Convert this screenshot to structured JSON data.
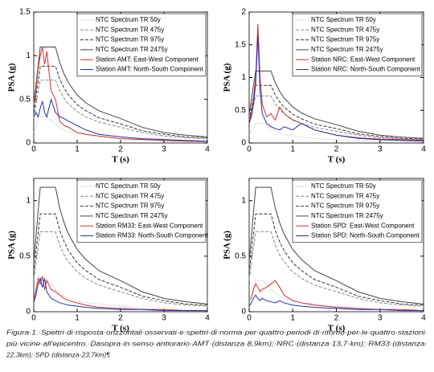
{
  "chart_data": [
    {
      "type": "line",
      "xlabel": "T (s)",
      "ylabel": "PSA (g)",
      "x": [
        0,
        0.05,
        0.1,
        0.15,
        0.2,
        0.25,
        0.3,
        0.4,
        0.5,
        0.6,
        0.7,
        0.8,
        1,
        1.2,
        1.5,
        2,
        2.5,
        3,
        3.5,
        4
      ],
      "xlim": [
        0,
        4
      ],
      "xticks": [
        0,
        1,
        2,
        3,
        4
      ],
      "ylim": [
        0,
        1.5
      ],
      "yticks": [
        0,
        0.5,
        1,
        1.5
      ],
      "series": [
        {
          "name": "NTC Spectrum TR 50y",
          "color": "#aaaaaa",
          "dash": "1,2",
          "values": [
            0.12,
            0.18,
            0.24,
            0.3,
            0.3,
            0.3,
            0.3,
            0.26,
            0.21,
            0.18,
            0.15,
            0.13,
            0.11,
            0.09,
            0.07,
            0.05,
            0.03,
            0.02,
            0.02,
            0.01
          ]
        },
        {
          "name": "NTC Spectrum TR 475y",
          "color": "#888888",
          "dash": "4,2",
          "values": [
            0.29,
            0.43,
            0.58,
            0.72,
            0.72,
            0.72,
            0.72,
            0.72,
            0.72,
            0.6,
            0.51,
            0.45,
            0.36,
            0.3,
            0.24,
            0.18,
            0.12,
            0.08,
            0.06,
            0.05
          ]
        },
        {
          "name": "NTC Spectrum TR 975y",
          "color": "#333333",
          "dash": "4,2",
          "values": [
            0.35,
            0.53,
            0.7,
            0.88,
            0.88,
            0.88,
            0.88,
            0.88,
            0.88,
            0.73,
            0.63,
            0.55,
            0.44,
            0.37,
            0.29,
            0.22,
            0.14,
            0.1,
            0.07,
            0.06
          ]
        },
        {
          "name": "NTC Spectrum TR 2475y",
          "color": "#444444",
          "values": [
            0.44,
            0.66,
            0.88,
            1.1,
            1.1,
            1.1,
            1.1,
            1.1,
            1.1,
            0.92,
            0.79,
            0.69,
            0.55,
            0.46,
            0.37,
            0.28,
            0.18,
            0.12,
            0.09,
            0.07
          ]
        },
        {
          "name": "Station AMT: East-West Component",
          "color": "#d03030",
          "values": [
            0.45,
            0.6,
            0.85,
            1.0,
            1.1,
            0.9,
            1.05,
            0.6,
            0.5,
            0.25,
            0.2,
            0.18,
            0.12,
            0.1,
            0.08,
            0.05,
            0.04,
            0.03,
            0.02,
            0.02
          ]
        },
        {
          "name": "Station AMT: North-South Component",
          "color": "#2030b0",
          "values": [
            0.3,
            0.35,
            0.3,
            0.4,
            0.48,
            0.35,
            0.3,
            0.5,
            0.35,
            0.3,
            0.28,
            0.25,
            0.2,
            0.15,
            0.1,
            0.07,
            0.05,
            0.04,
            0.03,
            0.02
          ]
        }
      ]
    },
    {
      "type": "line",
      "xlabel": "T (s)",
      "ylabel": "PSA (g)",
      "x": [
        0,
        0.05,
        0.1,
        0.15,
        0.2,
        0.25,
        0.3,
        0.4,
        0.5,
        0.6,
        0.7,
        0.8,
        1,
        1.2,
        1.5,
        2,
        2.5,
        3,
        3.5,
        4
      ],
      "xlim": [
        0,
        4
      ],
      "xticks": [
        0,
        1,
        2,
        3,
        4
      ],
      "ylim": [
        0,
        2
      ],
      "yticks": [
        0,
        0.5,
        1,
        1.5,
        2
      ],
      "series": [
        {
          "name": "NTC Spectrum TR 50y",
          "color": "#aaaaaa",
          "dash": "1,2",
          "values": [
            0.12,
            0.18,
            0.24,
            0.3,
            0.3,
            0.3,
            0.3,
            0.26,
            0.21,
            0.18,
            0.15,
            0.13,
            0.11,
            0.09,
            0.07,
            0.05,
            0.03,
            0.02,
            0.02,
            0.01
          ]
        },
        {
          "name": "NTC Spectrum TR 475y",
          "color": "#888888",
          "dash": "4,2",
          "values": [
            0.29,
            0.43,
            0.58,
            0.72,
            0.72,
            0.72,
            0.72,
            0.72,
            0.72,
            0.6,
            0.51,
            0.45,
            0.36,
            0.3,
            0.24,
            0.18,
            0.12,
            0.08,
            0.06,
            0.05
          ]
        },
        {
          "name": "NTC Spectrum TR 975y",
          "color": "#333333",
          "dash": "4,2",
          "values": [
            0.35,
            0.53,
            0.7,
            0.88,
            0.88,
            0.88,
            0.88,
            0.88,
            0.88,
            0.73,
            0.63,
            0.55,
            0.44,
            0.37,
            0.29,
            0.22,
            0.14,
            0.1,
            0.07,
            0.06
          ]
        },
        {
          "name": "NTC Spectrum TR 2475y",
          "color": "#444444",
          "values": [
            0.44,
            0.66,
            0.88,
            1.1,
            1.1,
            1.1,
            1.1,
            1.1,
            1.1,
            0.92,
            0.79,
            0.69,
            0.55,
            0.46,
            0.37,
            0.28,
            0.18,
            0.12,
            0.09,
            0.07
          ]
        },
        {
          "name": "Station NRC: East-West Component",
          "color": "#d03030",
          "values": [
            0.35,
            0.45,
            0.7,
            1.0,
            1.82,
            1.0,
            0.6,
            0.4,
            0.45,
            0.35,
            0.55,
            0.45,
            0.35,
            0.3,
            0.2,
            0.12,
            0.08,
            0.06,
            0.05,
            0.04
          ]
        },
        {
          "name": "Station NRC: North-South Component",
          "color": "#2030b0",
          "values": [
            0.3,
            0.4,
            0.6,
            0.9,
            1.65,
            0.8,
            0.45,
            0.3,
            0.25,
            0.22,
            0.2,
            0.25,
            0.2,
            0.3,
            0.2,
            0.12,
            0.07,
            0.05,
            0.04,
            0.03
          ]
        }
      ]
    },
    {
      "type": "line",
      "xlabel": "T (s)",
      "ylabel": "PSA (g)",
      "x": [
        0,
        0.05,
        0.1,
        0.15,
        0.2,
        0.25,
        0.3,
        0.4,
        0.5,
        0.6,
        0.7,
        0.8,
        1,
        1.2,
        1.5,
        2,
        2.5,
        3,
        3.5,
        4
      ],
      "xlim": [
        0,
        4
      ],
      "xticks": [
        0,
        1,
        2,
        3,
        4
      ],
      "ylim": [
        0,
        1.2
      ],
      "yticks": [
        0,
        0.5,
        1
      ],
      "series": [
        {
          "name": "NTC Spectrum TR 50y",
          "color": "#aaaaaa",
          "dash": "1,2",
          "values": [
            0.11,
            0.17,
            0.22,
            0.28,
            0.28,
            0.28,
            0.28,
            0.25,
            0.2,
            0.17,
            0.14,
            0.12,
            0.1,
            0.08,
            0.07,
            0.05,
            0.03,
            0.02,
            0.02,
            0.01
          ]
        },
        {
          "name": "NTC Spectrum TR 475y",
          "color": "#888888",
          "dash": "4,2",
          "values": [
            0.29,
            0.43,
            0.58,
            0.72,
            0.72,
            0.72,
            0.72,
            0.72,
            0.72,
            0.6,
            0.51,
            0.45,
            0.36,
            0.3,
            0.24,
            0.18,
            0.12,
            0.08,
            0.06,
            0.05
          ]
        },
        {
          "name": "NTC Spectrum TR 975y",
          "color": "#333333",
          "dash": "4,2",
          "values": [
            0.35,
            0.53,
            0.7,
            0.88,
            0.88,
            0.88,
            0.88,
            0.88,
            0.88,
            0.73,
            0.63,
            0.55,
            0.44,
            0.37,
            0.29,
            0.22,
            0.14,
            0.1,
            0.07,
            0.06
          ]
        },
        {
          "name": "NTC Spectrum TR 2475y",
          "color": "#444444",
          "values": [
            0.45,
            0.67,
            0.9,
            1.12,
            1.12,
            1.12,
            1.12,
            1.12,
            1.12,
            0.93,
            0.8,
            0.7,
            0.56,
            0.47,
            0.37,
            0.28,
            0.18,
            0.12,
            0.09,
            0.07
          ]
        },
        {
          "name": "Station RM33: East-West Component",
          "color": "#d03030",
          "values": [
            0.1,
            0.2,
            0.3,
            0.25,
            0.32,
            0.2,
            0.28,
            0.2,
            0.18,
            0.15,
            0.12,
            0.1,
            0.08,
            0.06,
            0.04,
            0.03,
            0.02,
            0.02,
            0.01,
            0.01
          ]
        },
        {
          "name": "Station RM33: North-South Component",
          "color": "#2030b0",
          "values": [
            0.08,
            0.15,
            0.25,
            0.3,
            0.22,
            0.3,
            0.18,
            0.12,
            0.1,
            0.08,
            0.07,
            0.06,
            0.05,
            0.04,
            0.03,
            0.02,
            0.02,
            0.01,
            0.01,
            0.01
          ]
        }
      ]
    },
    {
      "type": "line",
      "xlabel": "T (s)",
      "ylabel": "PSA (g)",
      "x": [
        0,
        0.05,
        0.1,
        0.15,
        0.2,
        0.25,
        0.3,
        0.4,
        0.5,
        0.6,
        0.7,
        0.8,
        1,
        1.2,
        1.5,
        2,
        2.5,
        3,
        3.5,
        4
      ],
      "xlim": [
        0,
        4
      ],
      "xticks": [
        0,
        1,
        2,
        3,
        4
      ],
      "ylim": [
        0,
        1.2
      ],
      "yticks": [
        0,
        0.5,
        1
      ],
      "series": [
        {
          "name": "NTC Spectrum TR 50y",
          "color": "#aaaaaa",
          "dash": "1,2",
          "values": [
            0.11,
            0.17,
            0.22,
            0.28,
            0.28,
            0.28,
            0.28,
            0.25,
            0.2,
            0.17,
            0.14,
            0.12,
            0.1,
            0.08,
            0.07,
            0.05,
            0.03,
            0.02,
            0.02,
            0.01
          ]
        },
        {
          "name": "NTC Spectrum TR 475y",
          "color": "#888888",
          "dash": "4,2",
          "values": [
            0.29,
            0.43,
            0.58,
            0.72,
            0.72,
            0.72,
            0.72,
            0.72,
            0.72,
            0.6,
            0.51,
            0.45,
            0.36,
            0.3,
            0.24,
            0.18,
            0.12,
            0.08,
            0.06,
            0.05
          ]
        },
        {
          "name": "NTC Spectrum TR 975y",
          "color": "#333333",
          "dash": "4,2",
          "values": [
            0.35,
            0.53,
            0.7,
            0.88,
            0.88,
            0.88,
            0.88,
            0.88,
            0.88,
            0.73,
            0.63,
            0.55,
            0.44,
            0.37,
            0.29,
            0.22,
            0.14,
            0.1,
            0.07,
            0.06
          ]
        },
        {
          "name": "NTC Spectrum TR 2475y",
          "color": "#444444",
          "values": [
            0.45,
            0.67,
            0.9,
            1.12,
            1.12,
            1.12,
            1.12,
            1.12,
            1.12,
            0.93,
            0.8,
            0.7,
            0.56,
            0.47,
            0.37,
            0.28,
            0.18,
            0.12,
            0.09,
            0.07
          ]
        },
        {
          "name": "Station SPD: East-West Component",
          "color": "#d03030",
          "values": [
            0.1,
            0.12,
            0.2,
            0.25,
            0.22,
            0.18,
            0.2,
            0.22,
            0.25,
            0.28,
            0.22,
            0.15,
            0.1,
            0.08,
            0.06,
            0.04,
            0.03,
            0.02,
            0.02,
            0.01
          ]
        },
        {
          "name": "Station SPD: North-South Component",
          "color": "#2030b0",
          "values": [
            0.05,
            0.08,
            0.12,
            0.15,
            0.12,
            0.1,
            0.12,
            0.1,
            0.09,
            0.08,
            0.1,
            0.08,
            0.06,
            0.05,
            0.04,
            0.03,
            0.02,
            0.02,
            0.01,
            0.01
          ]
        }
      ]
    }
  ],
  "caption": [
    "Figura·1.·Spettri·di·risposta·orizzontali·osservati·e·spettri·di·norma·per·quattro·periodi·di·ritorno·per·le·quattro·stazioni·",
    "più·vicine·all'epicentro.·Dasopra·in·senso·antiorario·AMT·(distanza·8,9km);·NRC·(distanza·13,7·km);·RM33·(distanza·",
    "22,3km);·SPD·(distanza·23,7km)¶"
  ]
}
